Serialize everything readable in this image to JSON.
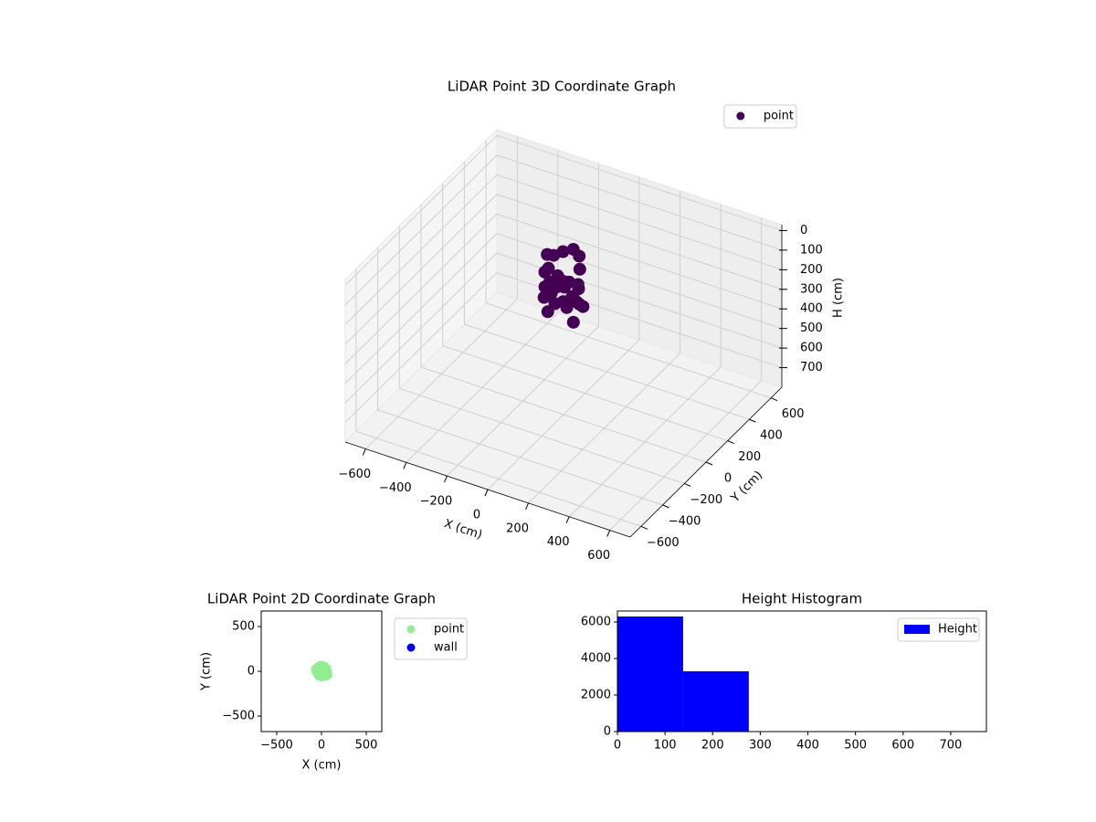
{
  "chart_data": [
    {
      "type": "scatter3d",
      "title": "LiDAR Point 3D Coordinate Graph",
      "xlabel": "X (cm)",
      "ylabel": "Y (cm)",
      "zlabel": "H (cm)",
      "xlim": [
        -700,
        700
      ],
      "ylim": [
        -700,
        700
      ],
      "zlim": [
        800,
        -30
      ],
      "xticks": [
        {
          "value": -600,
          "label": "−600"
        },
        {
          "value": -400,
          "label": "−400"
        },
        {
          "value": -200,
          "label": "−200"
        },
        0,
        200,
        400,
        600
      ],
      "yticks": [
        {
          "value": -600,
          "label": "−600"
        },
        {
          "value": -400,
          "label": "−400"
        },
        {
          "value": -200,
          "label": "−200"
        },
        0,
        200,
        400,
        600
      ],
      "zticks": [
        0,
        100,
        200,
        300,
        400,
        500,
        600,
        700
      ],
      "grid": true,
      "legend": "upper right",
      "series": [
        {
          "name": "point",
          "color": "#440154",
          "x": [
            -80,
            -40,
            0,
            40,
            80,
            -60,
            60,
            -20,
            20,
            -90,
            90,
            0,
            -50,
            50,
            -70,
            70,
            -30,
            30,
            0,
            -60,
            60,
            -85,
            85,
            0,
            -40,
            40,
            0,
            -75,
            75,
            10
          ],
          "y": [
            0,
            70,
            90,
            70,
            0,
            -60,
            -60,
            -90,
            -90,
            30,
            -30,
            0,
            40,
            40,
            -40,
            -40,
            60,
            -60,
            -80,
            0,
            10,
            -20,
            20,
            80,
            -70,
            70,
            30,
            50,
            -50,
            -10
          ],
          "z": [
            10,
            20,
            5,
            15,
            30,
            60,
            70,
            80,
            90,
            100,
            110,
            120,
            130,
            140,
            150,
            160,
            170,
            180,
            190,
            200,
            210,
            220,
            230,
            240,
            250,
            260,
            270,
            40,
            275,
            140
          ]
        }
      ]
    },
    {
      "type": "scatter",
      "title": "LiDAR Point 2D Coordinate Graph",
      "xlabel": "X (cm)",
      "ylabel": "Y (cm)",
      "xlim": [
        -673,
        673
      ],
      "ylim": [
        -673,
        673
      ],
      "xticks": [
        {
          "value": -500,
          "label": "−500"
        },
        0,
        500
      ],
      "yticks": [
        {
          "value": -500,
          "label": "−500"
        },
        0,
        500
      ],
      "legend": "outside right",
      "series": [
        {
          "name": "point",
          "color": "#90ee90",
          "x": [
            -40,
            -20,
            0,
            20,
            40,
            60,
            -60,
            -50,
            50,
            -30,
            30,
            0,
            -10,
            10,
            70,
            -70,
            45,
            -45,
            20,
            -20,
            0,
            80,
            -75,
            35,
            -35,
            60,
            10
          ],
          "y": [
            60,
            70,
            75,
            70,
            60,
            40,
            40,
            -20,
            -20,
            -60,
            -60,
            -70,
            20,
            0,
            10,
            -5,
            -50,
            -45,
            -30,
            30,
            -30,
            -40,
            30,
            20,
            -10,
            -60,
            40
          ]
        },
        {
          "name": "wall",
          "color": "#0000ff",
          "x": [],
          "y": []
        }
      ]
    },
    {
      "type": "histogram",
      "title": "Height Histogram",
      "xlim": [
        0,
        775
      ],
      "ylim": [
        0,
        6600
      ],
      "xticks": [
        0,
        100,
        200,
        300,
        400,
        500,
        600,
        700
      ],
      "yticks": [
        0,
        2000,
        4000,
        6000
      ],
      "legend": "upper right",
      "bins": [
        0,
        138,
        276,
        414,
        552,
        690
      ],
      "series": [
        {
          "name": "Height",
          "color": "#0000ff",
          "values": [
            6300,
            3300,
            0,
            0,
            0
          ]
        }
      ]
    }
  ]
}
